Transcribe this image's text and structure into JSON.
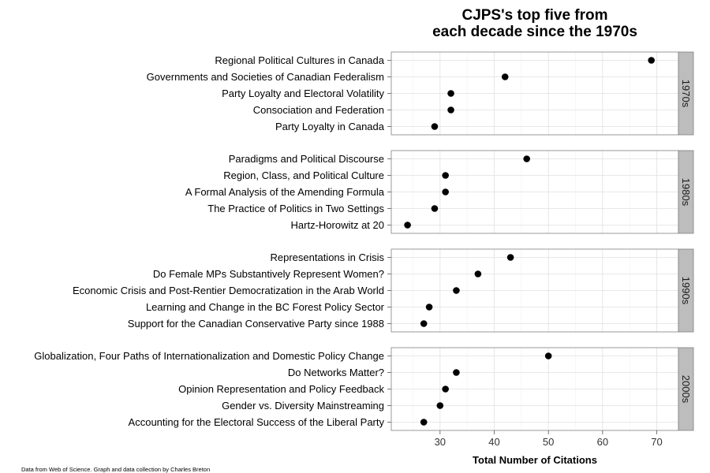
{
  "chart_data": {
    "type": "scatter",
    "title_lines": [
      "CJPS's top five from",
      "each decade since the 1970s"
    ],
    "xlabel": "Total Number of Citations",
    "xlim": [
      21,
      74
    ],
    "xticks": [
      30,
      40,
      50,
      60,
      70
    ],
    "xtick_labels": [
      "30",
      "40",
      "50",
      "60",
      "70"
    ],
    "grid": true,
    "caption": "Data from Web of Science. Graph and data collection by Charles Breton",
    "point_color": "#000000",
    "strip_color": "#bdbdbd",
    "panels": [
      {
        "facet": "1970s",
        "items": [
          {
            "label": "Regional Political Cultures in Canada",
            "value": 69
          },
          {
            "label": "Governments and Societies of Canadian Federalism",
            "value": 42
          },
          {
            "label": "Party Loyalty and Electoral Volatility",
            "value": 32
          },
          {
            "label": "Consociation and Federation",
            "value": 32
          },
          {
            "label": "Party Loyalty in Canada",
            "value": 29
          }
        ]
      },
      {
        "facet": "1980s",
        "items": [
          {
            "label": "Paradigms and Political Discourse",
            "value": 46
          },
          {
            "label": "Region, Class, and Political Culture",
            "value": 31
          },
          {
            "label": "A Formal Analysis of the Amending Formula",
            "value": 31
          },
          {
            "label": "The Practice of Politics in Two Settings",
            "value": 29
          },
          {
            "label": "Hartz-Horowitz at 20",
            "value": 24
          }
        ]
      },
      {
        "facet": "1990s",
        "items": [
          {
            "label": "Representations in Crisis",
            "value": 43
          },
          {
            "label": "Do Female MPs Substantively Represent Women?",
            "value": 37
          },
          {
            "label": "Economic Crisis and Post-Rentier Democratization in the Arab World",
            "value": 33
          },
          {
            "label": "Learning and Change in the BC Forest Policy Sector",
            "value": 28
          },
          {
            "label": "Support for the Canadian Conservative Party since 1988",
            "value": 27
          }
        ]
      },
      {
        "facet": "2000s",
        "items": [
          {
            "label": "Globalization, Four Paths of Internationalization and Domestic Policy Change",
            "value": 50
          },
          {
            "label": "Do Networks Matter?",
            "value": 33
          },
          {
            "label": "Opinion Representation and Policy Feedback",
            "value": 31
          },
          {
            "label": "Gender vs. Diversity Mainstreaming",
            "value": 30
          },
          {
            "label": "Accounting for the Electoral Success of the Liberal Party",
            "value": 27
          }
        ]
      }
    ]
  }
}
